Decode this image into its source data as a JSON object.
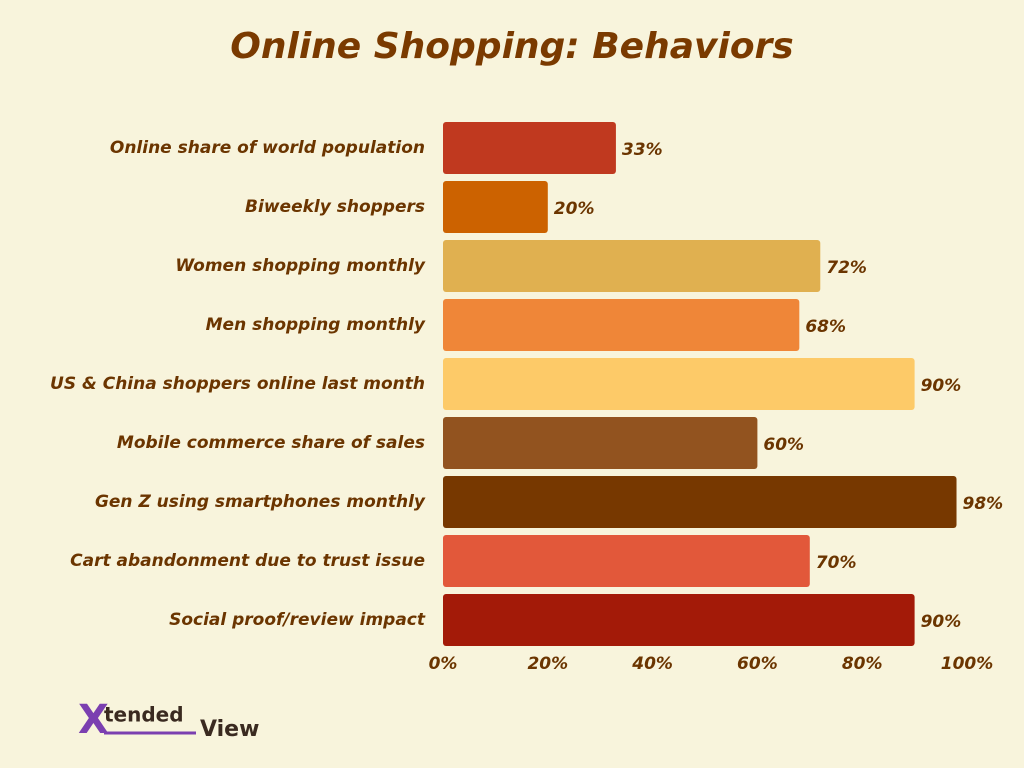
{
  "chart_data": {
    "type": "bar",
    "orientation": "horizontal",
    "title": "Online Shopping: Behaviors",
    "categories": [
      "Online share of world population",
      "Biweekly shoppers",
      "Women shopping monthly",
      "Men shopping monthly",
      "US & China shoppers online last month",
      "Mobile commerce share of sales",
      "Gen Z using smartphones monthly",
      "Cart abandonment due to trust issue",
      "Social proof/review impact"
    ],
    "values": [
      33,
      20,
      72,
      68,
      90,
      60,
      98,
      70,
      90
    ],
    "value_labels": [
      "33%",
      "20%",
      "72%",
      "68%",
      "90%",
      "60%",
      "98%",
      "70%",
      "90%"
    ],
    "colors": [
      "#c0391f",
      "#cc6200",
      "#e0b050",
      "#ef8638",
      "#fdca68",
      "#92531f",
      "#773800",
      "#e2583a",
      "#a31a08"
    ],
    "xlim": [
      0,
      100
    ],
    "xticks": [
      {
        "value": 0,
        "label": "0%"
      },
      {
        "value": 20,
        "label": "20%"
      },
      {
        "value": 40,
        "label": "40%"
      },
      {
        "value": 60,
        "label": "60%"
      },
      {
        "value": 80,
        "label": "80%"
      },
      {
        "value": 100,
        "label": "100%"
      }
    ],
    "grid": false
  },
  "logo": {
    "mark": "X",
    "word1": "tended",
    "word2": "View"
  }
}
